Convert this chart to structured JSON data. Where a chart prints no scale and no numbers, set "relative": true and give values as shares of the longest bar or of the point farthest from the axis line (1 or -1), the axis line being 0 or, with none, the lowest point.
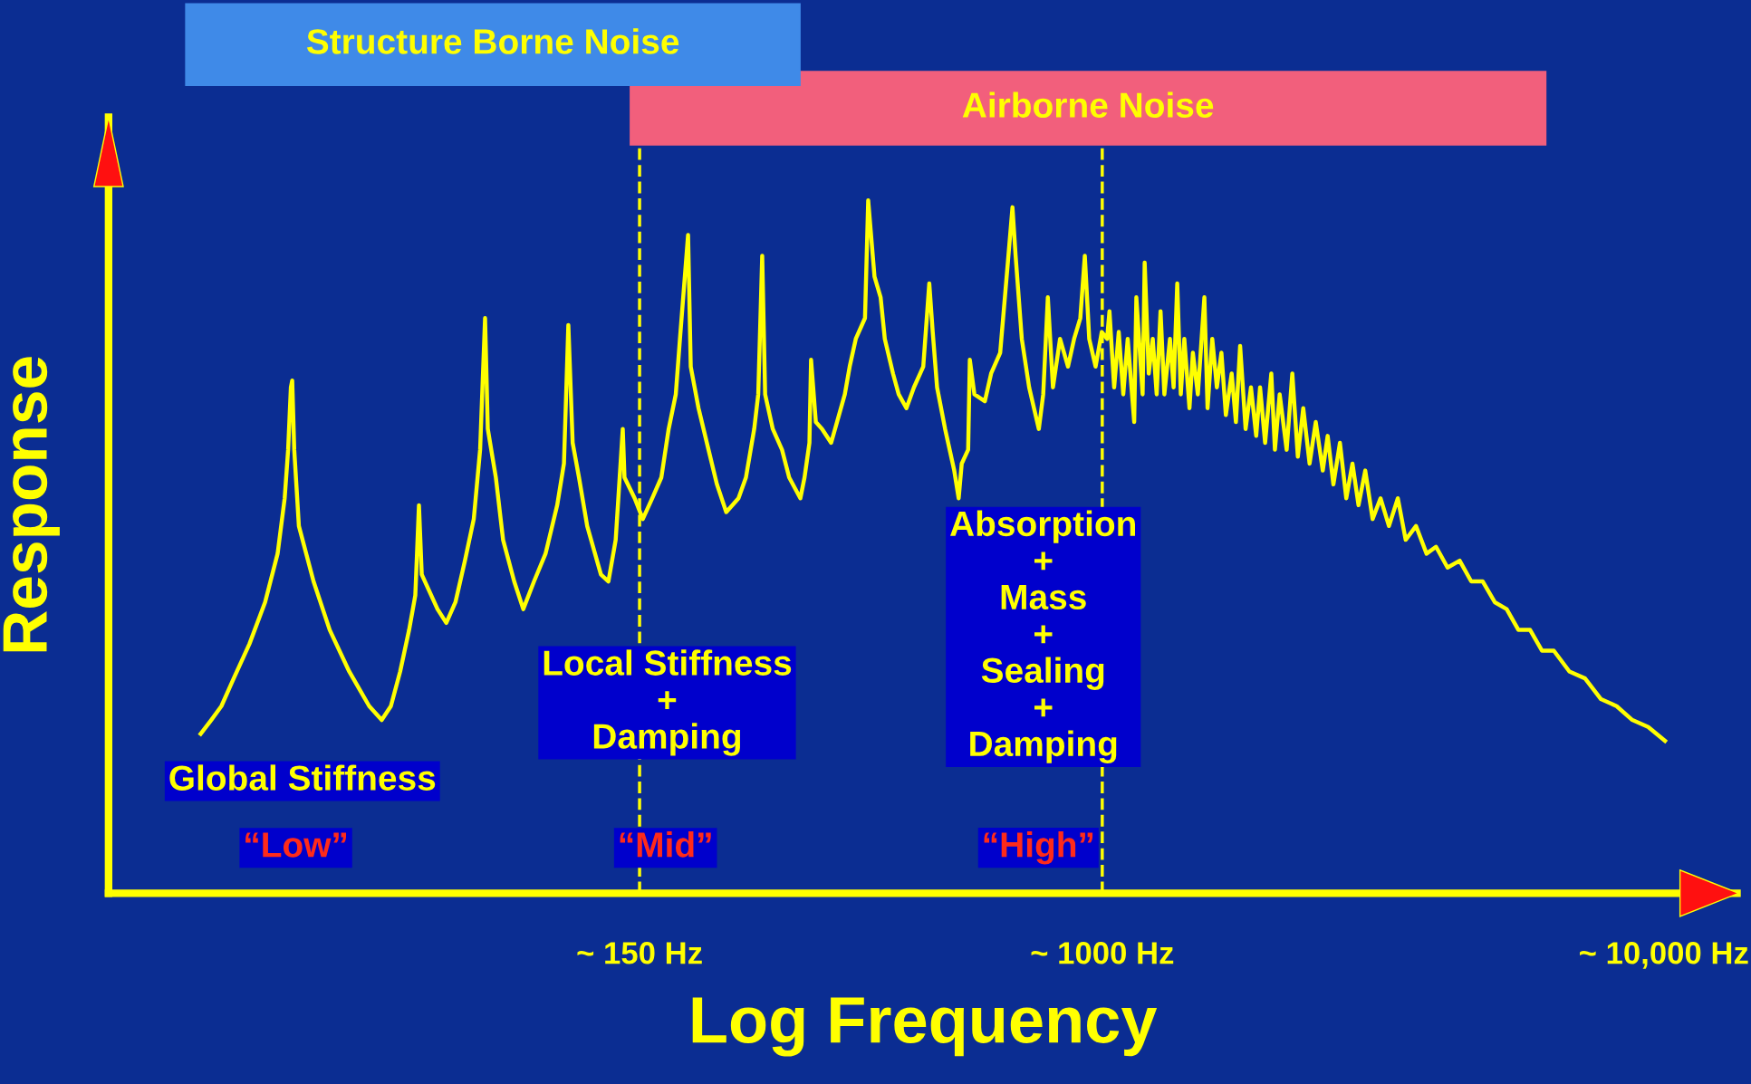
{
  "chart_data": {
    "type": "line",
    "relative": true,
    "xlabel": "Log Frequency",
    "ylabel": "Response",
    "log": "x",
    "xlim": [
      17,
      13500
    ],
    "xticks": [
      {
        "value": 150,
        "label": "~ 150 Hz"
      },
      {
        "value": 1000,
        "label": "~ 1000 Hz"
      },
      {
        "value": 10000,
        "label": "~ 10,000 Hz"
      }
    ],
    "x": [
      24.8,
      25.9,
      27.0,
      28.4,
      30.3,
      32.3,
      34.0,
      35.0,
      35.5,
      35.9,
      36.1,
      36.4,
      37.1,
      39.4,
      42.1,
      45.6,
      49.5,
      52.1,
      54.1,
      56.2,
      58.3,
      59.8,
      60.7,
      61.4,
      63.0,
      65.5,
      67.9,
      70.5,
      73.3,
      76.0,
      78.0,
      79.6,
      80.5,
      83.2,
      85.7,
      89.7,
      93.1,
      97.3,
      102,
      107,
      110,
      112,
      114,
      117,
      121,
      128,
      132,
      136,
      140,
      141,
      147,
      152,
      158,
      164,
      169,
      174,
      177,
      183,
      185,
      191,
      199,
      206,
      214,
      225,
      232,
      240,
      244,
      248,
      251,
      259,
      269,
      277,
      290,
      295,
      301,
      303,
      309,
      317,
      329,
      337,
      348,
      355,
      364,
      378,
      383,
      393,
      403,
      410,
      424,
      434,
      448,
      462,
      480,
      492,
      499,
      508,
      525,
      545,
      555,
      562,
      577,
      581,
      592,
      618,
      634,
      658,
      679,
      692,
      701,
      719,
      741,
      771,
      785,
      800,
      817,
      841,
      869,
      891,
      914,
      931,
      948,
      973,
      998,
      1020,
      1030,
      1050,
      1070,
      1090,
      1110,
      1140,
      1150,
      1180,
      1190,
      1210,
      1230,
      1250,
      1270,
      1290,
      1320,
      1340,
      1360,
      1380,
      1400,
      1430,
      1450,
      1480,
      1520,
      1540,
      1570,
      1600,
      1630,
      1660,
      1700,
      1730,
      1760,
      1800,
      1840,
      1880,
      1910,
      1950,
      2000,
      2030,
      2070,
      2130,
      2180,
      2230,
      2280,
      2340,
      2400,
      2470,
      2520,
      2580,
      2650,
      2720,
      2790,
      2860,
      2940,
      3030,
      3130,
      3240,
      3360,
      3470,
      3620,
      3780,
      3930,
      4120,
      4330,
      4540,
      4760,
      5000,
      5250,
      5510,
      5780,
      6070,
      6370,
      6790,
      7240,
      7730,
      8240,
      8790,
      9380,
      10050
    ],
    "series": [
      {
        "color": "#ffff00",
        "values": [
          0.23,
          0.25,
          0.27,
          0.31,
          0.36,
          0.42,
          0.49,
          0.57,
          0.64,
          0.73,
          0.74,
          0.64,
          0.53,
          0.45,
          0.38,
          0.32,
          0.27,
          0.25,
          0.27,
          0.32,
          0.38,
          0.43,
          0.56,
          0.46,
          0.44,
          0.41,
          0.39,
          0.42,
          0.48,
          0.54,
          0.64,
          0.83,
          0.67,
          0.6,
          0.51,
          0.45,
          0.41,
          0.45,
          0.49,
          0.56,
          0.62,
          0.82,
          0.65,
          0.6,
          0.53,
          0.46,
          0.45,
          0.51,
          0.67,
          0.6,
          0.57,
          0.54,
          0.57,
          0.6,
          0.67,
          0.72,
          0.8,
          0.95,
          0.76,
          0.7,
          0.64,
          0.59,
          0.55,
          0.57,
          0.6,
          0.67,
          0.72,
          0.92,
          0.72,
          0.67,
          0.64,
          0.6,
          0.57,
          0.6,
          0.65,
          0.77,
          0.68,
          0.67,
          0.65,
          0.68,
          0.72,
          0.76,
          0.8,
          0.83,
          1.0,
          0.89,
          0.86,
          0.8,
          0.75,
          0.72,
          0.7,
          0.73,
          0.76,
          0.88,
          0.81,
          0.73,
          0.67,
          0.61,
          0.57,
          0.62,
          0.64,
          0.77,
          0.72,
          0.71,
          0.75,
          0.78,
          0.91,
          0.99,
          0.92,
          0.8,
          0.73,
          0.67,
          0.72,
          0.86,
          0.73,
          0.8,
          0.76,
          0.8,
          0.83,
          0.92,
          0.8,
          0.76,
          0.81,
          0.8,
          0.84,
          0.73,
          0.81,
          0.72,
          0.8,
          0.68,
          0.86,
          0.72,
          0.91,
          0.75,
          0.8,
          0.72,
          0.84,
          0.72,
          0.8,
          0.73,
          0.88,
          0.72,
          0.8,
          0.7,
          0.78,
          0.72,
          0.86,
          0.7,
          0.8,
          0.73,
          0.78,
          0.69,
          0.75,
          0.68,
          0.79,
          0.67,
          0.73,
          0.66,
          0.73,
          0.65,
          0.75,
          0.64,
          0.72,
          0.64,
          0.75,
          0.63,
          0.7,
          0.62,
          0.68,
          0.61,
          0.66,
          0.59,
          0.65,
          0.57,
          0.62,
          0.56,
          0.61,
          0.54,
          0.57,
          0.53,
          0.57,
          0.51,
          0.53,
          0.49,
          0.5,
          0.47,
          0.48,
          0.45,
          0.45,
          0.42,
          0.41,
          0.38,
          0.38,
          0.35,
          0.35,
          0.32,
          0.31,
          0.28,
          0.27,
          0.25,
          0.24,
          0.22
        ]
      }
    ],
    "line_style": "solid",
    "marker": "none",
    "legend": false,
    "ref_lines": [
      {
        "axis": "x",
        "value": 150,
        "color": "#ffff00",
        "line_style": "dashed"
      },
      {
        "axis": "x",
        "value": 1000,
        "color": "#ffff00",
        "line_style": "dashed"
      }
    ],
    "annotations": [
      "Structure Borne Noise",
      "Airborne Noise",
      "Global Stiffness",
      "“Low”",
      "Local Stiffness\n+\nDamping",
      "“Mid”",
      "Absorption\n+\nMass\n+\nSealing\n+\nDamping",
      "“High”"
    ]
  }
}
